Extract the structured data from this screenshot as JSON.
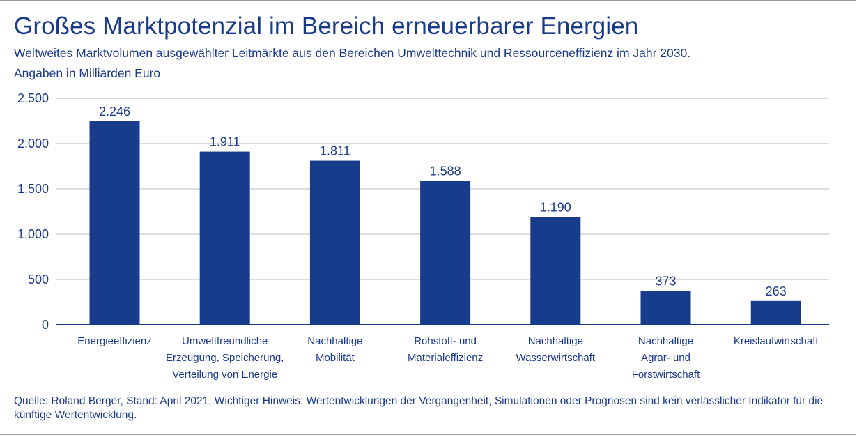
{
  "header": {
    "title": "Großes Marktpotenzial im Bereich erneuerbarer Energien",
    "subtitle": "Weltweites Marktvolumen ausgewählter Leitmärkte aus den Bereichen Umwelttechnik und Ressourceneffizienz im Jahr 2030.",
    "unit": "Angaben in Milliarden Euro"
  },
  "footer": {
    "source": "Quelle: Roland Berger, Stand: April 2021. Wichtiger Hinweis: Wertentwicklungen der Vergangenheit, Simulationen oder Prognosen sind kein verlässlicher Indikator für die künftige Wertentwicklung."
  },
  "colors": {
    "bar": "#173c8c",
    "text": "#1a3a8a",
    "grid": "#bbbbbb",
    "axis": "#1a3a8a"
  },
  "chart_data": {
    "type": "bar",
    "categories": [
      [
        "Energieeffizienz"
      ],
      [
        "Umweltfreundliche",
        "Erzeugung, Speicherung,",
        "Verteilung von Energie"
      ],
      [
        "Nachhaltige",
        "Mobilität"
      ],
      [
        "Rohstoff- und",
        "Materialeffizienz"
      ],
      [
        "Nachhaltige",
        "Wasserwirtschaft"
      ],
      [
        "Nachhaltige",
        "Agrar- und",
        "Forstwirtschaft"
      ],
      [
        "Kreislaufwirtschaft"
      ]
    ],
    "values": [
      2246,
      1911,
      1811,
      1588,
      1190,
      373,
      263
    ],
    "value_labels": [
      "2.246",
      "1.911",
      "1.811",
      "1.588",
      "1.190",
      "373",
      "263"
    ],
    "yticks": [
      0,
      500,
      1000,
      1500,
      2000,
      2500
    ],
    "ytick_labels": [
      "0",
      "500",
      "1.000",
      "1.500",
      "2.000",
      "2.500"
    ],
    "ylim": [
      0,
      2500
    ],
    "grid": true,
    "legend": "none"
  }
}
